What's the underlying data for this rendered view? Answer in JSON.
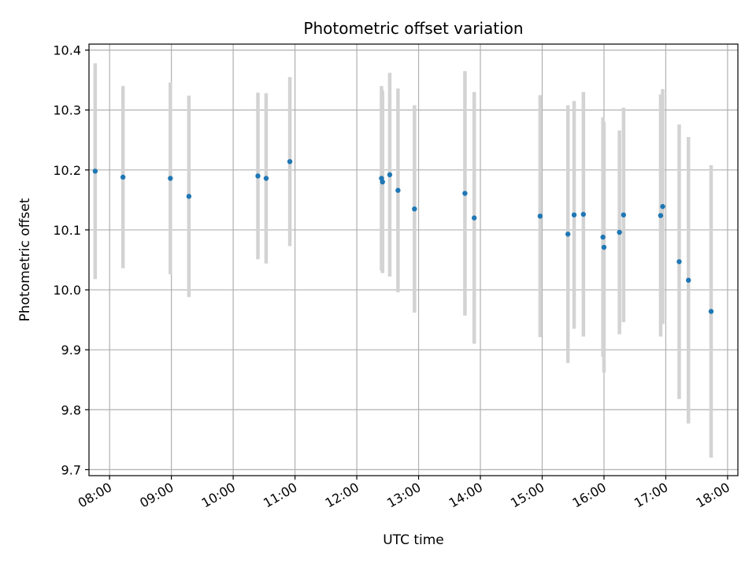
{
  "chart_data": {
    "type": "scatter",
    "title": "Photometric offset variation",
    "xlabel": "UTC time",
    "ylabel": "Photometric offset",
    "x_ticks": [
      "08:00",
      "09:00",
      "10:00",
      "11:00",
      "12:00",
      "13:00",
      "14:00",
      "15:00",
      "16:00",
      "17:00",
      "18:00"
    ],
    "y_ticks": [
      "9.7",
      "9.8",
      "9.9",
      "10.0",
      "10.1",
      "10.2",
      "10.3",
      "10.4"
    ],
    "xlim": [
      "07:40",
      "18:10"
    ],
    "ylim": [
      9.69,
      10.41
    ],
    "grid": true,
    "colors": {
      "point": "#1f77b4",
      "errorbar": "#d3d3d3",
      "grid": "#b0b0b0"
    },
    "series": [
      {
        "points": [
          {
            "x": "07:46",
            "y": 10.198,
            "err": 0.18
          },
          {
            "x": "08:13",
            "y": 10.188,
            "err": 0.152
          },
          {
            "x": "08:59",
            "y": 10.186,
            "err": 0.16
          },
          {
            "x": "09:17",
            "y": 10.156,
            "err": 0.168
          },
          {
            "x": "10:24",
            "y": 10.19,
            "err": 0.139
          },
          {
            "x": "10:32",
            "y": 10.186,
            "err": 0.142
          },
          {
            "x": "10:55",
            "y": 10.214,
            "err": 0.141
          },
          {
            "x": "12:24",
            "y": 10.186,
            "err": 0.154
          },
          {
            "x": "12:25",
            "y": 10.18,
            "err": 0.152
          },
          {
            "x": "12:32",
            "y": 10.192,
            "err": 0.17
          },
          {
            "x": "12:40",
            "y": 10.166,
            "err": 0.17
          },
          {
            "x": "12:56",
            "y": 10.135,
            "err": 0.173
          },
          {
            "x": "13:45",
            "y": 10.161,
            "err": 0.204
          },
          {
            "x": "13:54",
            "y": 10.12,
            "err": 0.21
          },
          {
            "x": "14:58",
            "y": 10.123,
            "err": 0.202
          },
          {
            "x": "15:25",
            "y": 10.093,
            "err": 0.215
          },
          {
            "x": "15:31",
            "y": 10.125,
            "err": 0.19
          },
          {
            "x": "15:40",
            "y": 10.126,
            "err": 0.204
          },
          {
            "x": "15:59",
            "y": 10.088,
            "err": 0.2
          },
          {
            "x": "16:00",
            "y": 10.071,
            "err": 0.209
          },
          {
            "x": "16:15",
            "y": 10.096,
            "err": 0.17
          },
          {
            "x": "16:19",
            "y": 10.125,
            "err": 0.179
          },
          {
            "x": "16:55",
            "y": 10.124,
            "err": 0.202
          },
          {
            "x": "16:57",
            "y": 10.139,
            "err": 0.196
          },
          {
            "x": "17:13",
            "y": 10.047,
            "err": 0.229
          },
          {
            "x": "17:22",
            "y": 10.016,
            "err": 0.239
          },
          {
            "x": "17:44",
            "y": 9.964,
            "err": 0.244
          }
        ]
      }
    ]
  }
}
